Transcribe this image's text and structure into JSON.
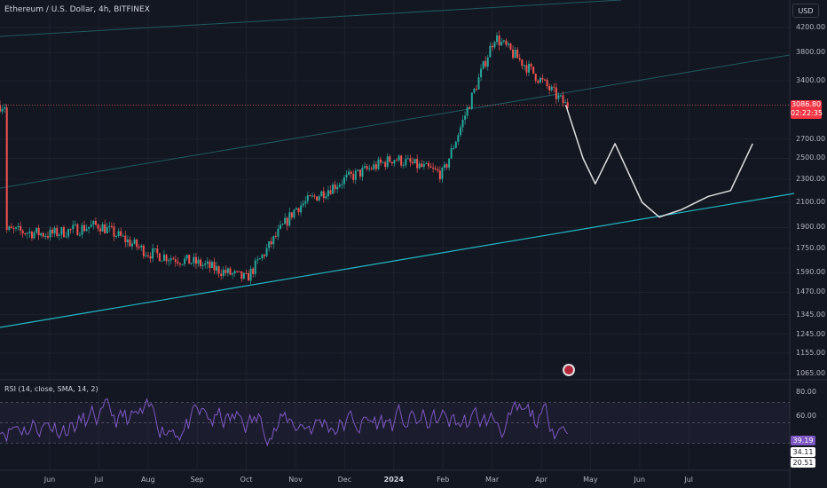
{
  "header": {
    "title": "Ethereum / U.S. Dollar, 4h, BITFINEX",
    "currency_button": "USD"
  },
  "price_tag": {
    "price": "3086.80",
    "countdown": "02:22:35"
  },
  "rsi": {
    "label": "RSI (14, close, SMA, 14, 2)",
    "current": "39.19",
    "sma": "34.11",
    "lower": "20.51"
  },
  "colors": {
    "background": "#131722",
    "bullish": "#26a69a",
    "bearish": "#ef5350",
    "rsi_line": "#7e57c2",
    "trend_line": "#22b8c6",
    "projection": "#e0e0e0",
    "price_tag": "#f23645"
  },
  "icons": {
    "event_marker": "earnings-flag-icon"
  },
  "chart_data": {
    "type": "candlestick",
    "symbol": "ETH/USD",
    "interval": "4h",
    "exchange": "BITFINEX",
    "y_axis_scale": "log",
    "y_ticks": [
      4200,
      3800,
      3400,
      2700,
      2500,
      2300,
      2100,
      1900,
      1750,
      1590,
      1470,
      1345,
      1245,
      1155,
      1065
    ],
    "y_tick_labels": [
      "4200.00",
      "3800.00",
      "3400.00",
      "2700.00",
      "2500.00",
      "2300.00",
      "2100.00",
      "1900.00",
      "1750.00",
      "1590.00",
      "1470.00",
      "1345.00",
      "1245.00",
      "1155.00",
      "1065.00"
    ],
    "x_tick_labels": [
      "Jun",
      "Jul",
      "Aug",
      "Sep",
      "Oct",
      "Nov",
      "Dec",
      "2024",
      "Feb",
      "Mar",
      "Apr",
      "May",
      "Jun",
      "Jul"
    ],
    "last_price": 3086.8,
    "price_path": [
      {
        "month": "2023-05",
        "close": 1880
      },
      {
        "month": "2023-06",
        "close": 1850
      },
      {
        "month": "2023-07",
        "close": 1920
      },
      {
        "month": "2023-08",
        "close": 1720
      },
      {
        "month": "2023-09",
        "close": 1650
      },
      {
        "month": "2023-10",
        "close": 1550
      },
      {
        "month": "2023-11",
        "close": 2050
      },
      {
        "month": "2023-12",
        "close": 2300
      },
      {
        "month": "2024-01",
        "close": 2500
      },
      {
        "month": "2024-02",
        "close": 2350
      },
      {
        "month": "2024-03",
        "close": 4050
      },
      {
        "month": "2024-03-end",
        "close": 3600
      },
      {
        "month": "2024-04",
        "close": 3086.8
      }
    ],
    "projection_path": [
      {
        "month": "2024-04",
        "value": 3086.8
      },
      {
        "month": "2024-04-end",
        "value": 2500
      },
      {
        "month": "2024-05-early",
        "value": 2260
      },
      {
        "month": "2024-05-mid",
        "value": 2650
      },
      {
        "month": "2024-05-end",
        "value": 2100
      },
      {
        "month": "2024-06-mid",
        "value": 1980
      },
      {
        "month": "2024-06-end",
        "value": 2040
      },
      {
        "month": "2024-07-mid",
        "value": 2150
      },
      {
        "month": "2024-07-end",
        "value": 2200
      },
      {
        "month": "2024-08",
        "value": 2650
      }
    ],
    "rsi_levels": {
      "upper": 70,
      "middle": 50,
      "lower": 30
    },
    "rsi_ticks": [
      80,
      60
    ],
    "rsi_values": {
      "rsi": 39.19,
      "sma": 34.11,
      "band": 20.51
    },
    "grid": true
  }
}
